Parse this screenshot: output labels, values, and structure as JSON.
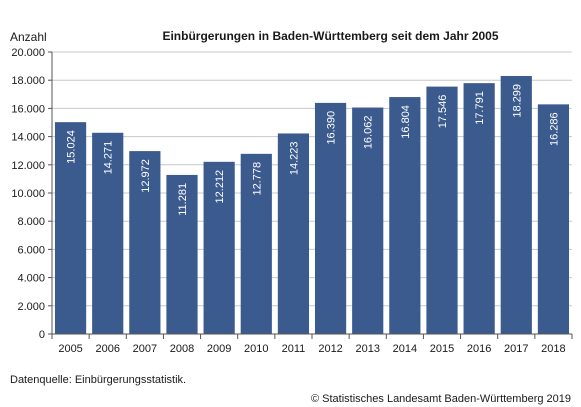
{
  "chart_data": {
    "type": "bar",
    "title": "Einbürgerungen in Baden-Württemberg seit dem Jahr 2005",
    "ylabel": "Anzahl",
    "xlabel": "",
    "categories": [
      "2005",
      "2006",
      "2007",
      "2008",
      "2009",
      "2010",
      "2011",
      "2012",
      "2013",
      "2014",
      "2015",
      "2016",
      "2017",
      "2018"
    ],
    "values": [
      15024,
      14271,
      12972,
      11281,
      12212,
      12778,
      14223,
      16390,
      16062,
      16804,
      17546,
      17791,
      18299,
      16286
    ],
    "value_labels": [
      "15.024",
      "14.271",
      "12.972",
      "11.281",
      "12.212",
      "12.778",
      "14.223",
      "16.390",
      "16.062",
      "16.804",
      "17.546",
      "17.791",
      "18.299",
      "16.286"
    ],
    "ylim": [
      0,
      20000
    ],
    "yticks": [
      0,
      2000,
      4000,
      6000,
      8000,
      10000,
      12000,
      14000,
      16000,
      18000,
      20000
    ],
    "ytick_labels": [
      "0",
      "2.000",
      "4.000",
      "6.000",
      "8.000",
      "10.000",
      "12.000",
      "14.000",
      "16.000",
      "18.000",
      "20.000"
    ],
    "grid": true,
    "bar_color": "#3b5b8f",
    "grid_color": "#c8c8c8"
  },
  "footer": {
    "source": "Datenquelle: Einbürgerungsstatistik.",
    "copyright": "© Statistisches Landesamt Baden-Württemberg 2019"
  }
}
